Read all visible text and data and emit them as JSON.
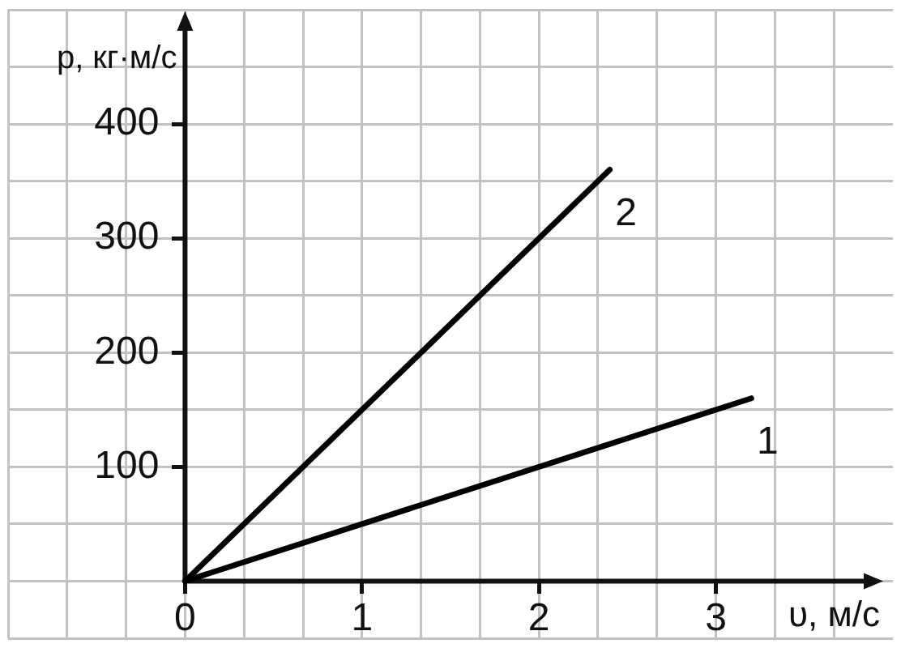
{
  "chart_data": {
    "type": "line",
    "xlabel": "υ, м/с",
    "ylabel": "p, кг·м/с",
    "xlim": [
      -1,
      4
    ],
    "ylim": [
      -50,
      500
    ],
    "xticks": [
      {
        "value": -1,
        "label": null
      },
      {
        "value": -0.667,
        "label": null
      },
      {
        "value": -0.333,
        "label": null
      },
      {
        "value": 0,
        "label": "0"
      },
      {
        "value": 0.333,
        "label": null
      },
      {
        "value": 0.667,
        "label": null
      },
      1,
      {
        "value": 1.333,
        "label": null
      },
      {
        "value": 1.667,
        "label": null
      },
      2,
      {
        "value": 2.333,
        "label": null
      },
      {
        "value": 2.667,
        "label": null
      },
      3,
      {
        "value": 3.333,
        "label": null
      },
      {
        "value": 3.667,
        "label": null
      }
    ],
    "yticks": [
      {
        "value": -50,
        "label": null
      },
      {
        "value": 0,
        "label": null
      },
      {
        "value": 50,
        "label": null
      },
      100,
      {
        "value": 150,
        "label": null
      },
      200,
      {
        "value": 250,
        "label": null
      },
      300,
      {
        "value": 350,
        "label": null
      },
      400,
      {
        "value": 450,
        "label": null
      },
      {
        "value": 500,
        "label": null
      }
    ],
    "grid": true,
    "legend": false,
    "marker": "none",
    "series": [
      {
        "name": "1",
        "color": "#000000",
        "x": [
          0,
          3.2
        ],
        "values": [
          0,
          160
        ]
      },
      {
        "name": "2",
        "color": "#000000",
        "x": [
          0,
          2.4
        ],
        "values": [
          0,
          360
        ]
      }
    ]
  }
}
